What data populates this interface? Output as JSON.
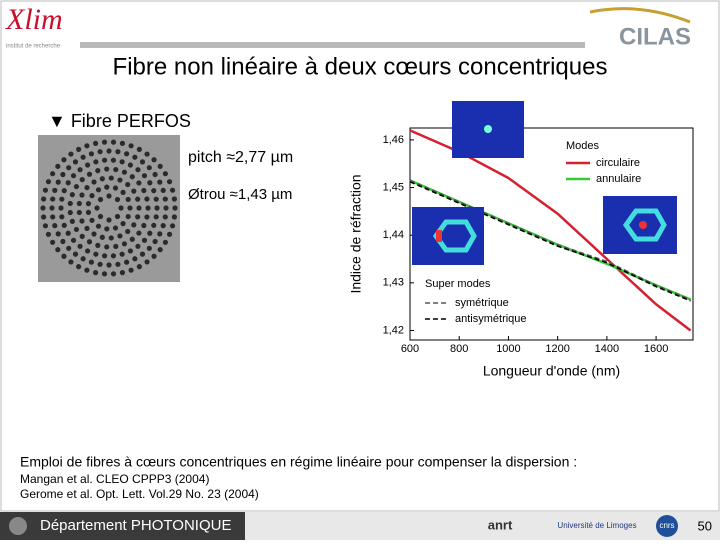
{
  "header": {
    "logo_left": "Xlim",
    "logo_left_sub": "institut de recherche",
    "logo_right": "CILAS"
  },
  "title": "Fibre non linéaire à deux cœurs concentriques",
  "bullet": "▼ Fibre PERFOS",
  "params": [
    "pitch ≈2,77 µm",
    "Øtrou ≈1,43 µm"
  ],
  "chart_data": {
    "type": "line",
    "xlabel": "Longueur d'onde (nm)",
    "ylabel": "Indice de réfraction",
    "x": [
      600,
      800,
      1000,
      1200,
      1400,
      1600,
      1740
    ],
    "series": [
      {
        "name": "circulaire",
        "color": "#d62030",
        "values": [
          1.462,
          1.4575,
          1.452,
          1.4445,
          1.435,
          1.4255,
          1.42
        ]
      },
      {
        "name": "annulaire",
        "color": "#33cc33",
        "values": [
          1.4515,
          1.447,
          1.4425,
          1.438,
          1.434,
          1.4295,
          1.4265
        ]
      },
      {
        "name": "symétrique",
        "color": "#555555",
        "dashed": true,
        "values": [
          1.4515,
          1.447,
          1.4425,
          1.438,
          1.4345,
          1.4295,
          1.4265
        ]
      },
      {
        "name": "antisymétrique",
        "color": "#000000",
        "dashed": true,
        "values": [
          1.4512,
          1.4467,
          1.4422,
          1.4377,
          1.4342,
          1.4292,
          1.4262
        ]
      }
    ],
    "legend_groups": [
      "Modes",
      "Super modes"
    ],
    "xlim": [
      600,
      1750
    ],
    "ylim": [
      1.418,
      1.4625
    ],
    "xticks": [
      600,
      800,
      1000,
      1200,
      1400,
      1600
    ],
    "yticks": [
      {
        "value": 1.42,
        "label": "1,42"
      },
      {
        "value": 1.43,
        "label": "1,43"
      },
      {
        "value": 1.44,
        "label": "1,44"
      },
      {
        "value": 1.45,
        "label": "1,45"
      },
      {
        "value": 1.46,
        "label": "1,46"
      }
    ]
  },
  "body": {
    "line": "Emploi de fibres à cœurs concentriques en régime linéaire pour compenser la dispersion :",
    "refs": [
      "Mangan et al. CLEO CPPP3 (2004)",
      "Gerome et al. Opt. Lett. Vol.29 No. 23 (2004)"
    ]
  },
  "footer": {
    "department": "Département PHOTONIQUE",
    "logos": [
      "anrt",
      "Université de Limoges",
      "cnrs"
    ],
    "page": "50"
  }
}
